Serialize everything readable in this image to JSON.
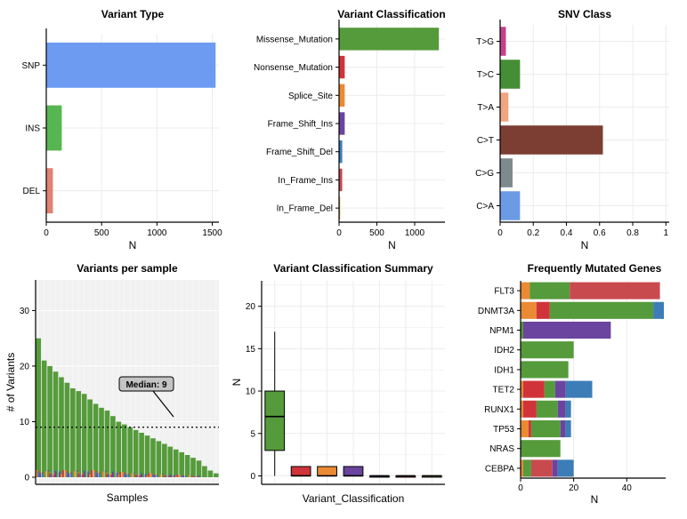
{
  "colors": {
    "variant_type": [
      "#6c9bf1",
      "#57b651",
      "#e08272"
    ],
    "missense": "#559b3b",
    "nonsense": "#d0343a",
    "splice": "#ea8a34",
    "frame_shift_ins": "#6a449e",
    "frame_shift_del": "#3c7db7",
    "in_frame_ins": "#c84a4f",
    "in_frame_del": "#d9a74a",
    "snv": [
      "#c4428c",
      "#458e35",
      "#f0a583",
      "#7c3e32",
      "#7d8a8e",
      "#6c9be6"
    ]
  },
  "chart_data": [
    {
      "id": "variant_type",
      "type": "bar",
      "orientation": "horizontal",
      "title": "Variant Type",
      "xlabel": "N",
      "categories": [
        "SNP",
        "INS",
        "DEL"
      ],
      "values": [
        1530,
        140,
        60
      ],
      "xlim": [
        0,
        1560
      ],
      "xticks": [
        "0",
        "500",
        "1000",
        "1500"
      ],
      "xtick_values": [
        0,
        500,
        1000,
        1500
      ]
    },
    {
      "id": "variant_classification",
      "type": "bar",
      "orientation": "horizontal",
      "title": "Variant Classification",
      "xlabel": "N",
      "categories": [
        "Missense_Mutation",
        "Nonsense_Mutation",
        "Splice_Site",
        "Frame_Shift_Ins",
        "Frame_Shift_Del",
        "In_Frame_Ins",
        "In_Frame_Del"
      ],
      "values": [
        1320,
        75,
        75,
        75,
        42,
        42,
        15
      ],
      "xlim": [
        0,
        1400
      ],
      "xticks": [
        "0",
        "500",
        "1000"
      ],
      "xtick_values": [
        0,
        500,
        1000
      ]
    },
    {
      "id": "snv_class",
      "type": "bar",
      "orientation": "horizontal",
      "title": "SNV Class",
      "xlabel": "N",
      "categories": [
        "T>G",
        "T>C",
        "T>A",
        "C>T",
        "C>G",
        "C>A"
      ],
      "values": [
        0.035,
        0.12,
        0.05,
        0.62,
        0.075,
        0.12
      ],
      "xlim": [
        0,
        1.02
      ],
      "xticks": [
        "0",
        "0.2",
        "0.4",
        "0.6",
        "0.8",
        "1"
      ],
      "xtick_values": [
        0,
        0.2,
        0.4,
        0.6,
        0.8,
        1
      ]
    },
    {
      "id": "variants_per_sample",
      "type": "bar",
      "title": "Variants per sample",
      "xlabel": "Samples",
      "ylabel": "# of Variants",
      "ylim": [
        0,
        35.5
      ],
      "yticks": [
        "0",
        "10",
        "20",
        "30"
      ],
      "ytick_values": [
        0,
        10,
        20,
        30
      ],
      "values": [
        25,
        21,
        20,
        19,
        18,
        17,
        16,
        15.5,
        15,
        14,
        13.2,
        12.5,
        12,
        11,
        10,
        9.5,
        9,
        8.5,
        8,
        7.5,
        7,
        6.5,
        6,
        5.5,
        5,
        4.5,
        4,
        3.5,
        3,
        2,
        1.2,
        0.7
      ],
      "median": 9,
      "annotation": "Median: 9"
    },
    {
      "id": "classification_summary",
      "type": "box",
      "title": "Variant Classification Summary",
      "xlabel": "Variant_Classification",
      "ylabel": "N",
      "ylim": [
        -1,
        23
      ],
      "yticks": [
        "0",
        "5",
        "10",
        "15",
        "20"
      ],
      "ytick_values": [
        0,
        5,
        10,
        15,
        20
      ],
      "boxes": [
        {
          "min": 0,
          "q1": 3,
          "median": 7,
          "q3": 10,
          "max": 17
        },
        {
          "min": 0,
          "q1": 0,
          "median": 0,
          "q3": 1.1,
          "max": 1.1
        },
        {
          "min": 0,
          "q1": 0,
          "median": 0,
          "q3": 1.1,
          "max": 1.1
        },
        {
          "min": 0,
          "q1": 0,
          "median": 0,
          "q3": 1.1,
          "max": 1.1
        },
        {
          "min": 0,
          "q1": 0,
          "median": 0,
          "q3": 0,
          "max": 0
        },
        {
          "min": 0,
          "q1": 0,
          "median": 0,
          "q3": 0,
          "max": 0
        },
        {
          "min": 0,
          "q1": 0,
          "median": 0,
          "q3": 0,
          "max": 0
        }
      ]
    },
    {
      "id": "frequently_mutated_genes",
      "type": "stacked_bar",
      "orientation": "horizontal",
      "title": "Frequently Mutated Genes",
      "xlabel": "N",
      "xlim": [
        0,
        56
      ],
      "xticks": [
        "0",
        "20",
        "40"
      ],
      "xtick_values": [
        0,
        20,
        40
      ],
      "categories": [
        "FLT3",
        "DNMT3A",
        "NPM1",
        "IDH2",
        "IDH1",
        "TET2",
        "RUNX1",
        "TP53",
        "NRAS",
        "CEBPA"
      ],
      "segments": [
        [
          {
            "c": "splice",
            "v": 3.5
          },
          {
            "c": "missense",
            "v": 15
          },
          {
            "c": "in_frame_ins",
            "v": 34
          }
        ],
        [
          {
            "c": "splice",
            "v": 6
          },
          {
            "c": "nonsense",
            "v": 5
          },
          {
            "c": "missense",
            "v": 39
          },
          {
            "c": "frame_shift_del",
            "v": 4
          }
        ],
        [
          {
            "c": "missense",
            "v": 1
          },
          {
            "c": "frame_shift_ins",
            "v": 33
          }
        ],
        [
          {
            "c": "missense",
            "v": 20
          }
        ],
        [
          {
            "c": "missense",
            "v": 18
          }
        ],
        [
          {
            "c": "splice",
            "v": 1
          },
          {
            "c": "nonsense",
            "v": 8
          },
          {
            "c": "missense",
            "v": 4
          },
          {
            "c": "frame_shift_ins",
            "v": 4
          },
          {
            "c": "frame_shift_del",
            "v": 10
          }
        ],
        [
          {
            "c": "splice",
            "v": 1
          },
          {
            "c": "nonsense",
            "v": 5
          },
          {
            "c": "missense",
            "v": 8
          },
          {
            "c": "frame_shift_ins",
            "v": 3
          },
          {
            "c": "frame_shift_del",
            "v": 2
          }
        ],
        [
          {
            "c": "splice",
            "v": 3
          },
          {
            "c": "nonsense",
            "v": 1
          },
          {
            "c": "missense",
            "v": 11
          },
          {
            "c": "frame_shift_ins",
            "v": 2
          },
          {
            "c": "frame_shift_del",
            "v": 2
          }
        ],
        [
          {
            "c": "missense",
            "v": 15
          }
        ],
        [
          {
            "c": "splice",
            "v": 1
          },
          {
            "c": "missense",
            "v": 3
          },
          {
            "c": "in_frame_ins",
            "v": 8
          },
          {
            "c": "frame_shift_ins",
            "v": 2
          },
          {
            "c": "frame_shift_del",
            "v": 6
          }
        ]
      ]
    }
  ]
}
